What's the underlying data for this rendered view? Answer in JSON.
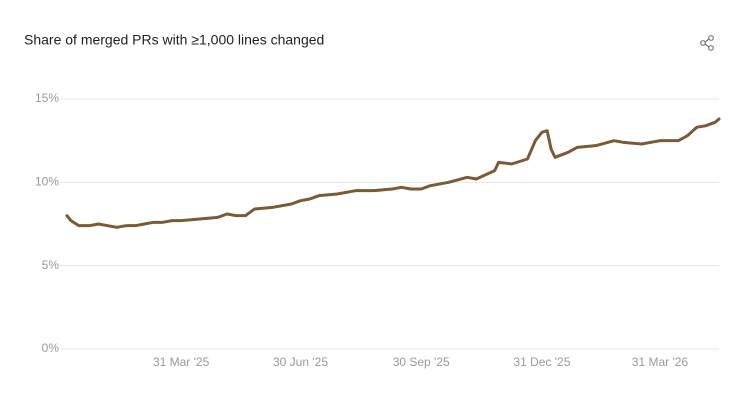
{
  "chart_data": {
    "type": "line",
    "title": "Share of merged PRs with ≥1,000 lines changed",
    "x": [
      "2025-01-03",
      "2025-01-06",
      "2025-01-12",
      "2025-01-20",
      "2025-01-27",
      "2025-02-03",
      "2025-02-10",
      "2025-02-17",
      "2025-02-24",
      "2025-03-03",
      "2025-03-10",
      "2025-03-17",
      "2025-03-24",
      "2025-03-31",
      "2025-04-14",
      "2025-04-28",
      "2025-05-05",
      "2025-05-12",
      "2025-05-19",
      "2025-05-26",
      "2025-06-09",
      "2025-06-23",
      "2025-06-30",
      "2025-07-07",
      "2025-07-14",
      "2025-07-28",
      "2025-08-11",
      "2025-08-25",
      "2025-09-08",
      "2025-09-15",
      "2025-09-22",
      "2025-09-30",
      "2025-10-07",
      "2025-10-21",
      "2025-11-04",
      "2025-11-11",
      "2025-11-25",
      "2025-11-28",
      "2025-12-08",
      "2025-12-20",
      "2025-12-26",
      "2025-12-31",
      "2026-01-04",
      "2026-01-07",
      "2026-01-10",
      "2026-01-20",
      "2026-01-27",
      "2026-02-10",
      "2026-02-24",
      "2026-03-03",
      "2026-03-17",
      "2026-03-31",
      "2026-04-14",
      "2026-04-21",
      "2026-04-28",
      "2026-05-05",
      "2026-05-12",
      "2026-05-15"
    ],
    "series": [
      {
        "name": "Share of merged PRs",
        "color": "#7b5a36",
        "values": [
          8.0,
          7.7,
          7.4,
          7.4,
          7.5,
          7.4,
          7.3,
          7.4,
          7.4,
          7.5,
          7.6,
          7.6,
          7.7,
          7.7,
          7.8,
          7.9,
          8.1,
          8.0,
          8.0,
          8.4,
          8.5,
          8.7,
          8.9,
          9.0,
          9.2,
          9.3,
          9.5,
          9.5,
          9.6,
          9.7,
          9.6,
          9.6,
          9.8,
          10.0,
          10.3,
          10.2,
          10.7,
          11.2,
          11.1,
          11.4,
          12.5,
          13.0,
          13.1,
          12.0,
          11.5,
          11.8,
          12.1,
          12.2,
          12.5,
          12.4,
          12.3,
          12.5,
          12.5,
          12.8,
          13.3,
          13.4,
          13.6,
          13.8
        ]
      }
    ],
    "xlim": [
      "2025-01-03",
      "2026-05-15"
    ],
    "xticks": [
      {
        "value": "2025-03-31",
        "label": "31 Mar '25"
      },
      {
        "value": "2025-06-30",
        "label": "30 Jun '25"
      },
      {
        "value": "2025-09-30",
        "label": "30 Sep '25"
      },
      {
        "value": "2025-12-31",
        "label": "31 Dec '25"
      },
      {
        "value": "2026-03-31",
        "label": "31 Mar '26"
      }
    ],
    "ylim": [
      0,
      15
    ],
    "yticks": [
      {
        "value": 0,
        "label": "0%"
      },
      {
        "value": 5,
        "label": "5%"
      },
      {
        "value": 10,
        "label": "10%"
      },
      {
        "value": 15,
        "label": "15%"
      }
    ],
    "grid": true
  }
}
